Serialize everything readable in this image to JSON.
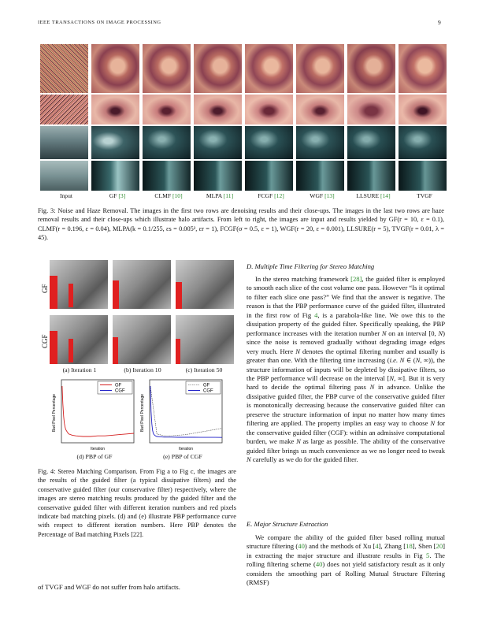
{
  "header": {
    "journal": "IEEE TRANSACTIONS ON IMAGE PROCESSING",
    "page_number": "9"
  },
  "figure3": {
    "columns": [
      {
        "name": "Input",
        "ref": ""
      },
      {
        "name": "GF",
        "ref": "[3]"
      },
      {
        "name": "CLMF",
        "ref": "[10]"
      },
      {
        "name": "MLPA",
        "ref": "[11]"
      },
      {
        "name": "FCGF",
        "ref": "[12]"
      },
      {
        "name": "WGF",
        "ref": "[13]"
      },
      {
        "name": "LLSURE",
        "ref": "[14]"
      },
      {
        "name": "TVGF",
        "ref": ""
      }
    ],
    "caption": "Fig. 3: Noise and Haze Removal. The images in the first two rows are denoising results and their close-ups. The images in the last two rows are haze removal results and their close-ups which illustrate halo artifacts. From left to right, the images are input and results yielded by GF(r = 10, ε = 0.1), CLMF(r = 0.196, ε = 0.04), MLPA(k = 0.1/255, εs = 0.005², εr = 1), FCGF(σ = 0.5, ε = 1), WGF(r = 20, ε = 0.001), LLSURE(r = 5), TVGF(r = 0.01, λ = 45)."
  },
  "figure4": {
    "row_labels": [
      "GF",
      "CGF"
    ],
    "subcaptions": [
      "(a) Iteration 1",
      "(b) Iteration 10",
      "(c) Iteration 50",
      "(d) PBP of GF",
      "(e) PBP of CGF"
    ],
    "plot_legend": [
      "GF",
      "CGF"
    ],
    "plot_ylabel": "Bad Pixel Percentage",
    "plot_xlabel": "Iteration",
    "caption": "Fig. 4: Stereo Matching Comparison. From Fig a to Fig c, the images are the results of the guided filter (a typical dissipative filters) and the conservative guided filter (our conservative filter) respectively, where the images are stereo matching results produced by the guided filter and the conservative guided filter with different iteration numbers and red pixels indicate bad matching pixels. (d) and (e) illustrate PBP performance curve with respect to different iteration numbers. Here PBP denotes the Percentage of Bad matching Pixels [22]."
  },
  "chart_data": [
    {
      "type": "line",
      "title": "",
      "xlabel": "Iteration",
      "ylabel": "Bad Pixel Percentage",
      "series": [
        {
          "name": "GF",
          "x": [
            1,
            2,
            3,
            4,
            5,
            6,
            8,
            10,
            15,
            20,
            30,
            40,
            50,
            60,
            70,
            80,
            90,
            100
          ],
          "y": [
            0.9,
            0.62,
            0.42,
            0.31,
            0.25,
            0.21,
            0.17,
            0.14,
            0.12,
            0.11,
            0.1,
            0.1,
            0.11,
            0.11,
            0.12,
            0.13,
            0.14,
            0.15
          ]
        }
      ],
      "xlim": [
        0,
        100
      ],
      "ylim": [
        0,
        1
      ]
    },
    {
      "type": "line",
      "title": "",
      "xlabel": "Iteration",
      "ylabel": "Bad Pixel Percentage",
      "series": [
        {
          "name": "GF",
          "x": [
            1,
            10,
            20,
            30,
            40,
            50,
            60,
            70,
            80,
            90,
            100
          ],
          "y": [
            0.9,
            0.14,
            0.11,
            0.11,
            0.12,
            0.13,
            0.15,
            0.17,
            0.19,
            0.21,
            0.23
          ]
        },
        {
          "name": "CGF",
          "x": [
            1,
            2,
            3,
            4,
            5,
            6,
            8,
            10,
            15,
            20,
            30,
            40,
            50,
            60,
            70,
            80,
            90,
            100
          ],
          "y": [
            0.9,
            0.5,
            0.3,
            0.2,
            0.15,
            0.13,
            0.11,
            0.1,
            0.095,
            0.09,
            0.09,
            0.088,
            0.087,
            0.087,
            0.086,
            0.086,
            0.086,
            0.085
          ]
        }
      ],
      "xlim": [
        0,
        100
      ],
      "ylim": [
        0,
        1
      ]
    }
  ],
  "left_col_tail": "of TVGF and WGF do not suffer from halo artifacts.",
  "sections": {
    "d_title": "D. Multiple Time Filtering for Stereo Matching",
    "e_title": "E. Major Structure Extraction"
  },
  "colors": {
    "ref_green": "#2e8b2e",
    "curve_red": "#d42020",
    "curve_blue": "#2020c8"
  }
}
